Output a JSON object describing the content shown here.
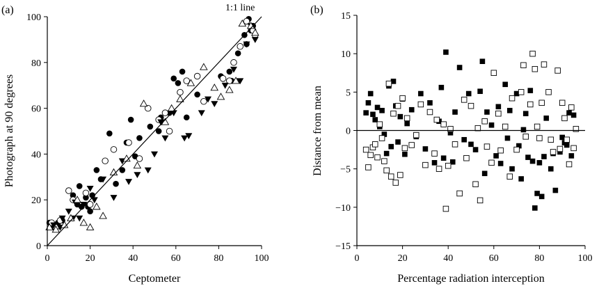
{
  "chart_data": [
    {
      "type": "scatter",
      "panel_label": "(a)",
      "xlabel": "Ceptometer",
      "ylabel": "Photograph at 90 degrees",
      "xlim": [
        0,
        100
      ],
      "ylim": [
        0,
        100
      ],
      "xticks": [
        "0",
        "20",
        "40",
        "60",
        "80",
        "100"
      ],
      "yticks": [
        "0",
        "20",
        "40",
        "60",
        "80",
        "100"
      ],
      "annotation": "1:1 line",
      "reference_line": {
        "x": [
          0,
          100
        ],
        "y": [
          0,
          100
        ]
      },
      "series": [
        {
          "marker": "filled-circle",
          "points": [
            [
              1,
              10
            ],
            [
              2,
              9
            ],
            [
              3,
              8
            ],
            [
              4,
              9
            ],
            [
              5,
              10
            ],
            [
              7,
              11
            ],
            [
              12,
              22
            ],
            [
              14,
              18
            ],
            [
              15,
              26
            ],
            [
              16,
              17
            ],
            [
              18,
              21
            ],
            [
              19,
              17
            ],
            [
              20,
              15
            ],
            [
              21,
              22
            ],
            [
              23,
              33
            ],
            [
              25,
              29
            ],
            [
              29,
              49
            ],
            [
              32,
              27
            ],
            [
              35,
              33
            ],
            [
              37,
              45
            ],
            [
              39,
              55
            ],
            [
              41,
              39
            ],
            [
              43,
              47
            ],
            [
              48,
              52
            ],
            [
              52,
              50
            ],
            [
              53,
              56
            ],
            [
              57,
              58
            ],
            [
              59,
              73
            ],
            [
              61,
              71
            ],
            [
              63,
              76
            ],
            [
              65,
              56
            ],
            [
              70,
              66
            ],
            [
              81,
              74
            ],
            [
              85,
              76
            ],
            [
              86,
              72
            ],
            [
              89,
              84
            ],
            [
              92,
              92
            ],
            [
              93,
              88
            ],
            [
              95,
              94
            ],
            [
              96,
              96
            ],
            [
              94,
              99
            ]
          ]
        },
        {
          "marker": "open-circle",
          "points": [
            [
              2,
              10
            ],
            [
              4,
              8
            ],
            [
              6,
              11
            ],
            [
              10,
              24
            ],
            [
              12,
              20
            ],
            [
              18,
              23
            ],
            [
              20,
              18
            ],
            [
              27,
              37
            ],
            [
              31,
              42
            ],
            [
              38,
              45
            ],
            [
              43,
              38
            ],
            [
              47,
              60
            ],
            [
              52,
              55
            ],
            [
              55,
              58
            ],
            [
              57,
              50
            ],
            [
              62,
              67
            ],
            [
              65,
              72
            ],
            [
              70,
              74
            ],
            [
              73,
              63
            ],
            [
              82,
              73
            ],
            [
              85,
              72
            ],
            [
              87,
              80
            ],
            [
              90,
              87
            ],
            [
              93,
              98
            ],
            [
              96,
              94
            ],
            [
              97,
              92
            ]
          ]
        },
        {
          "marker": "filled-triangle-down",
          "points": [
            [
              3,
              9
            ],
            [
              6,
              8
            ],
            [
              7,
              12
            ],
            [
              10,
              15
            ],
            [
              12,
              12
            ],
            [
              13,
              19
            ],
            [
              15,
              12
            ],
            [
              17,
              18
            ],
            [
              20,
              25
            ],
            [
              22,
              20
            ],
            [
              26,
              29
            ],
            [
              31,
              21
            ],
            [
              35,
              37
            ],
            [
              38,
              28
            ],
            [
              42,
              31
            ],
            [
              47,
              33
            ],
            [
              50,
              40
            ],
            [
              53,
              54
            ],
            [
              55,
              47
            ],
            [
              59,
              58
            ],
            [
              64,
              47
            ],
            [
              66,
              48
            ],
            [
              72,
              58
            ],
            [
              75,
              64
            ],
            [
              78,
              62
            ],
            [
              83,
              70
            ],
            [
              87,
              77
            ],
            [
              90,
              72
            ],
            [
              93,
              88
            ],
            [
              95,
              96
            ],
            [
              97,
              90
            ]
          ]
        },
        {
          "marker": "open-triangle-up",
          "points": [
            [
              1,
              8
            ],
            [
              4,
              7
            ],
            [
              8,
              9
            ],
            [
              11,
              12
            ],
            [
              14,
              20
            ],
            [
              17,
              10
            ],
            [
              20,
              8
            ],
            [
              23,
              17
            ],
            [
              26,
              13
            ],
            [
              31,
              32
            ],
            [
              37,
              38
            ],
            [
              42,
              35
            ],
            [
              45,
              62
            ],
            [
              55,
              54
            ],
            [
              58,
              60
            ],
            [
              62,
              64
            ],
            [
              67,
              71
            ],
            [
              73,
              78
            ],
            [
              78,
              69
            ],
            [
              81,
              65
            ],
            [
              85,
              68
            ],
            [
              88,
              72
            ],
            [
              91,
              97
            ],
            [
              95,
              96
            ],
            [
              97,
              93
            ]
          ]
        }
      ]
    },
    {
      "type": "scatter",
      "panel_label": "(b)",
      "xlabel": "Percentage radiation interception",
      "ylabel": "Distance from mean",
      "xlim": [
        0,
        100
      ],
      "ylim": [
        -15,
        15
      ],
      "xticks": [
        "0",
        "20",
        "40",
        "60",
        "80",
        "100"
      ],
      "yticks": [
        "15",
        "10",
        "5",
        "0",
        "−5",
        "−10",
        "−15"
      ],
      "reference_line": {
        "x": [
          0,
          100
        ],
        "y": [
          0,
          0
        ]
      },
      "series": [
        {
          "marker": "filled-square",
          "points": [
            [
              4,
              2.3
            ],
            [
              5,
              3.6
            ],
            [
              6,
              4.8
            ],
            [
              7,
              2.1
            ],
            [
              8,
              1.4
            ],
            [
              9,
              3.0
            ],
            [
              10,
              0.5
            ],
            [
              11,
              2.6
            ],
            [
              12,
              -0.5
            ],
            [
              13,
              -3.0
            ],
            [
              14,
              5.8
            ],
            [
              15,
              -2.1
            ],
            [
              16,
              6.4
            ],
            [
              17,
              3.2
            ],
            [
              18,
              -1.5
            ],
            [
              19,
              1.8
            ],
            [
              20,
              4.1
            ],
            [
              21,
              -3.1
            ],
            [
              22,
              0.9
            ],
            [
              24,
              2.7
            ],
            [
              26,
              -0.8
            ],
            [
              28,
              4.8
            ],
            [
              30,
              -2.4
            ],
            [
              32,
              3.6
            ],
            [
              34,
              -4.2
            ],
            [
              36,
              1.2
            ],
            [
              37,
              5.6
            ],
            [
              38,
              -3.6
            ],
            [
              39,
              10.2
            ],
            [
              41,
              -0.3
            ],
            [
              42,
              -4.1
            ],
            [
              43,
              2.4
            ],
            [
              45,
              8.2
            ],
            [
              47,
              -1.2
            ],
            [
              49,
              4.8
            ],
            [
              50,
              -1.8
            ],
            [
              52,
              -2.5
            ],
            [
              54,
              5.1
            ],
            [
              55,
              9.0
            ],
            [
              56,
              -5.6
            ],
            [
              57,
              2.4
            ],
            [
              59,
              0.7
            ],
            [
              61,
              -3.3
            ],
            [
              62,
              3.1
            ],
            [
              63,
              -4.3
            ],
            [
              65,
              6.0
            ],
            [
              66,
              -1.0
            ],
            [
              67,
              2.6
            ],
            [
              68,
              -5.0
            ],
            [
              70,
              4.8
            ],
            [
              71,
              -2.0
            ],
            [
              72,
              -6.3
            ],
            [
              73,
              0.1
            ],
            [
              74,
              2.2
            ],
            [
              75,
              -3.5
            ],
            [
              76,
              5.2
            ],
            [
              77,
              -4.0
            ],
            [
              78,
              -10.1
            ],
            [
              79,
              -8.2
            ],
            [
              80,
              -4.2
            ],
            [
              81,
              -8.6
            ],
            [
              82,
              -3.4
            ],
            [
              83,
              1.6
            ],
            [
              85,
              -5.0
            ],
            [
              86,
              -3.0
            ],
            [
              87,
              -7.8
            ],
            [
              89,
              -2.8
            ],
            [
              90,
              -0.9
            ],
            [
              91,
              -1.6
            ],
            [
              92,
              -1.9
            ],
            [
              93,
              2.3
            ],
            [
              94,
              -3.3
            ],
            [
              95,
              2.0
            ]
          ]
        },
        {
          "marker": "open-square",
          "points": [
            [
              4,
              -2.5
            ],
            [
              5,
              -4.8
            ],
            [
              6,
              -3.2
            ],
            [
              7,
              -2.2
            ],
            [
              8,
              -1.8
            ],
            [
              9,
              -3.5
            ],
            [
              10,
              0.8
            ],
            [
              11,
              -1.0
            ],
            [
              12,
              -4.0
            ],
            [
              13,
              -5.2
            ],
            [
              14,
              6.1
            ],
            [
              15,
              -6.0
            ],
            [
              16,
              2.2
            ],
            [
              17,
              -6.8
            ],
            [
              18,
              3.2
            ],
            [
              19,
              -5.8
            ],
            [
              20,
              4.2
            ],
            [
              21,
              -2.3
            ],
            [
              22,
              1.6
            ],
            [
              24,
              -1.9
            ],
            [
              26,
              -0.6
            ],
            [
              28,
              3.4
            ],
            [
              30,
              -4.5
            ],
            [
              32,
              2.4
            ],
            [
              34,
              -3.0
            ],
            [
              35,
              1.4
            ],
            [
              36,
              -5.0
            ],
            [
              38,
              0.8
            ],
            [
              39,
              -10.2
            ],
            [
              40,
              -4.6
            ],
            [
              41,
              0.2
            ],
            [
              43,
              -1.8
            ],
            [
              45,
              -8.2
            ],
            [
              47,
              4.0
            ],
            [
              48,
              -3.6
            ],
            [
              50,
              3.2
            ],
            [
              52,
              -7.0
            ],
            [
              53,
              0.3
            ],
            [
              54,
              -9.1
            ],
            [
              56,
              1.2
            ],
            [
              57,
              -2.1
            ],
            [
              59,
              -4.2
            ],
            [
              60,
              7.5
            ],
            [
              62,
              2.2
            ],
            [
              63,
              -2.6
            ],
            [
              65,
              0.5
            ],
            [
              67,
              -6.0
            ],
            [
              68,
              4.2
            ],
            [
              70,
              -2.5
            ],
            [
              72,
              5.0
            ],
            [
              73,
              8.5
            ],
            [
              74,
              -0.8
            ],
            [
              76,
              3.4
            ],
            [
              77,
              10.0
            ],
            [
              78,
              8.0
            ],
            [
              79,
              0.5
            ],
            [
              80,
              -1.0
            ],
            [
              81,
              3.6
            ],
            [
              82,
              8.6
            ],
            [
              84,
              5.0
            ],
            [
              85,
              -1.2
            ],
            [
              86,
              -2.8
            ],
            [
              88,
              7.8
            ],
            [
              89,
              -2.4
            ],
            [
              90,
              3.6
            ],
            [
              91,
              1.6
            ],
            [
              92,
              -1.2
            ],
            [
              93,
              -4.4
            ],
            [
              94,
              3.0
            ],
            [
              95,
              -2.3
            ],
            [
              96,
              0.2
            ]
          ]
        }
      ]
    }
  ]
}
